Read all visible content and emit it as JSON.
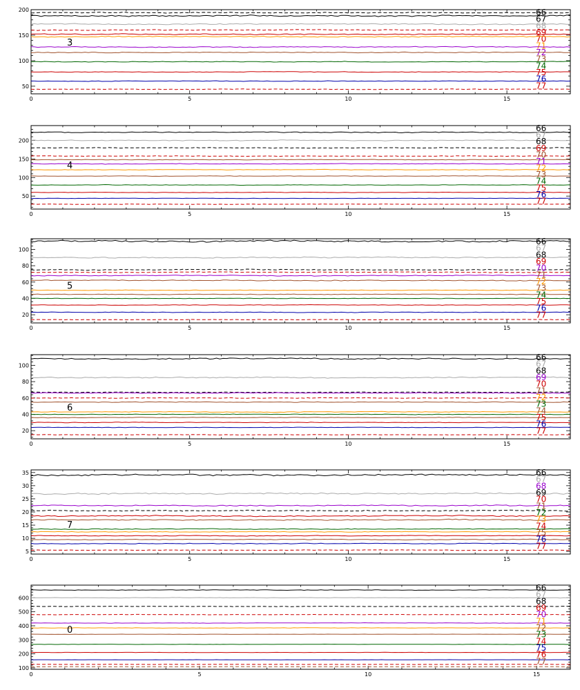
{
  "chart_data": [
    {
      "type": "line",
      "panel_label": "3",
      "xlim": [
        0,
        17
      ],
      "ylim": [
        35,
        200
      ],
      "xticks": [
        0,
        5,
        10,
        15
      ],
      "yticks": [
        50,
        100,
        150,
        200
      ],
      "series": [
        {
          "name": "66",
          "color": "#000000",
          "dash": false,
          "level": 188,
          "noise": 2.0
        },
        {
          "name": "67",
          "color": "#000000",
          "dash": true,
          "level": 194,
          "noise": 1.2
        },
        {
          "name": "68",
          "color": "#aaaaaa",
          "dash": false,
          "level": 172,
          "noise": 1.5
        },
        {
          "name": "69",
          "color": "#cc0000",
          "dash": true,
          "level": 160,
          "noise": 1.2
        },
        {
          "name": "70",
          "color": "#cc0000",
          "dash": false,
          "level": 152,
          "noise": 1.5
        },
        {
          "name": "71",
          "color": "#ff9900",
          "dash": false,
          "level": 147,
          "noise": 1.5
        },
        {
          "name": "72",
          "color": "#9900cc",
          "dash": false,
          "level": 127,
          "noise": 1.2
        },
        {
          "name": "73",
          "color": "#a0522d",
          "dash": false,
          "level": 116,
          "noise": 1.2
        },
        {
          "name": "74",
          "color": "#006600",
          "dash": false,
          "level": 98,
          "noise": 1.0
        },
        {
          "name": "75",
          "color": "#cc0000",
          "dash": false,
          "level": 78,
          "noise": 1.0
        },
        {
          "name": "76",
          "color": "#0000aa",
          "dash": false,
          "level": 60,
          "noise": 1.0
        },
        {
          "name": "77",
          "color": "#cc0000",
          "dash": true,
          "level": 44,
          "noise": 0.8
        }
      ]
    },
    {
      "type": "line",
      "panel_label": "4",
      "xlim": [
        0,
        17
      ],
      "ylim": [
        15,
        240
      ],
      "xticks": [
        0,
        5,
        10,
        15
      ],
      "yticks": [
        50,
        100,
        150,
        200
      ],
      "series": [
        {
          "name": "66",
          "color": "#000000",
          "dash": false,
          "level": 222,
          "noise": 2.0
        },
        {
          "name": "67",
          "color": "#aaaaaa",
          "dash": false,
          "level": 200,
          "noise": 1.5
        },
        {
          "name": "68",
          "color": "#000000",
          "dash": true,
          "level": 180,
          "noise": 1.2
        },
        {
          "name": "69",
          "color": "#cc0000",
          "dash": true,
          "level": 158,
          "noise": 1.2
        },
        {
          "name": "70",
          "color": "#a0522d",
          "dash": false,
          "level": 148,
          "noise": 1.2
        },
        {
          "name": "71",
          "color": "#9900cc",
          "dash": false,
          "level": 137,
          "noise": 1.5
        },
        {
          "name": "72",
          "color": "#ff9900",
          "dash": false,
          "level": 121,
          "noise": 1.2
        },
        {
          "name": "73",
          "color": "#a0522d",
          "dash": false,
          "level": 104,
          "noise": 1.0
        },
        {
          "name": "74",
          "color": "#006600",
          "dash": false,
          "level": 80,
          "noise": 1.0
        },
        {
          "name": "75",
          "color": "#cc0000",
          "dash": false,
          "level": 60,
          "noise": 1.0
        },
        {
          "name": "76",
          "color": "#0000aa",
          "dash": false,
          "level": 44,
          "noise": 0.8
        },
        {
          "name": "77",
          "color": "#cc0000",
          "dash": true,
          "level": 28,
          "noise": 0.8
        }
      ]
    },
    {
      "type": "line",
      "panel_label": "5",
      "xlim": [
        0,
        17
      ],
      "ylim": [
        10,
        113
      ],
      "xticks": [
        0,
        5,
        10,
        15
      ],
      "yticks": [
        20,
        40,
        60,
        80,
        100
      ],
      "series": [
        {
          "name": "66",
          "color": "#000000",
          "dash": false,
          "level": 110,
          "noise": 1.5
        },
        {
          "name": "67",
          "color": "#aaaaaa",
          "dash": false,
          "level": 90,
          "noise": 1.0
        },
        {
          "name": "68",
          "color": "#000000",
          "dash": true,
          "level": 75,
          "noise": 0.8
        },
        {
          "name": "69",
          "color": "#cc0000",
          "dash": true,
          "level": 72,
          "noise": 0.6
        },
        {
          "name": "70",
          "color": "#9900cc",
          "dash": false,
          "level": 68,
          "noise": 0.8
        },
        {
          "name": "71",
          "color": "#a0522d",
          "dash": false,
          "level": 62,
          "noise": 0.8
        },
        {
          "name": "72",
          "color": "#ff9900",
          "dash": false,
          "level": 50,
          "noise": 0.6
        },
        {
          "name": "73",
          "color": "#a0522d",
          "dash": false,
          "level": 45,
          "noise": 0.6
        },
        {
          "name": "74",
          "color": "#006600",
          "dash": false,
          "level": 40,
          "noise": 0.5
        },
        {
          "name": "75",
          "color": "#cc0000",
          "dash": false,
          "level": 32,
          "noise": 0.5
        },
        {
          "name": "76",
          "color": "#0000aa",
          "dash": false,
          "level": 23,
          "noise": 0.5
        },
        {
          "name": "77",
          "color": "#cc0000",
          "dash": true,
          "level": 14,
          "noise": 0.4
        }
      ]
    },
    {
      "type": "line",
      "panel_label": "6",
      "xlim": [
        0,
        17
      ],
      "ylim": [
        10,
        113
      ],
      "xticks": [
        0,
        5,
        10,
        15
      ],
      "yticks": [
        20,
        40,
        60,
        80,
        100
      ],
      "series": [
        {
          "name": "66",
          "color": "#000000",
          "dash": false,
          "level": 108,
          "noise": 1.2
        },
        {
          "name": "67",
          "color": "#aaaaaa",
          "dash": false,
          "level": 85,
          "noise": 1.0
        },
        {
          "name": "68",
          "color": "#000000",
          "dash": true,
          "level": 67,
          "noise": 0.6
        },
        {
          "name": "69",
          "color": "#9900cc",
          "dash": false,
          "level": 66,
          "noise": 0.8
        },
        {
          "name": "70",
          "color": "#cc0000",
          "dash": true,
          "level": 60,
          "noise": 0.6
        },
        {
          "name": "71",
          "color": "#a0522d",
          "dash": false,
          "level": 55,
          "noise": 0.6
        },
        {
          "name": "72",
          "color": "#ff9900",
          "dash": false,
          "level": 43,
          "noise": 0.6
        },
        {
          "name": "73",
          "color": "#006600",
          "dash": false,
          "level": 40,
          "noise": 0.5
        },
        {
          "name": "74",
          "color": "#a0522d",
          "dash": false,
          "level": 36,
          "noise": 0.5
        },
        {
          "name": "75",
          "color": "#cc0000",
          "dash": false,
          "level": 30,
          "noise": 0.5
        },
        {
          "name": "76",
          "color": "#0000aa",
          "dash": false,
          "level": 24,
          "noise": 0.4
        },
        {
          "name": "77",
          "color": "#cc0000",
          "dash": true,
          "level": 15,
          "noise": 0.4
        }
      ]
    },
    {
      "type": "line",
      "panel_label": "7",
      "xlim": [
        0,
        17
      ],
      "ylim": [
        4,
        36
      ],
      "xticks": [
        0,
        5,
        10,
        15
      ],
      "yticks": [
        5,
        10,
        15,
        20,
        25,
        30,
        35
      ],
      "series": [
        {
          "name": "66",
          "color": "#000000",
          "dash": false,
          "level": 34,
          "noise": 0.5
        },
        {
          "name": "67",
          "color": "#aaaaaa",
          "dash": false,
          "level": 27,
          "noise": 0.4
        },
        {
          "name": "68",
          "color": "#9900cc",
          "dash": false,
          "level": 22.5,
          "noise": 0.3
        },
        {
          "name": "69",
          "color": "#000000",
          "dash": true,
          "level": 20.5,
          "noise": 0.3
        },
        {
          "name": "70",
          "color": "#cc0000",
          "dash": false,
          "level": 18.5,
          "noise": 0.3
        },
        {
          "name": "71",
          "color": "#a0522d",
          "dash": false,
          "level": 17,
          "noise": 0.3
        },
        {
          "name": "72",
          "color": "#006600",
          "dash": false,
          "level": 13.5,
          "noise": 0.2
        },
        {
          "name": "73",
          "color": "#ff9900",
          "dash": false,
          "level": 12.5,
          "noise": 0.2
        },
        {
          "name": "74",
          "color": "#cc0000",
          "dash": false,
          "level": 11,
          "noise": 0.2
        },
        {
          "name": "75",
          "color": "#a0522d",
          "dash": false,
          "level": 9.5,
          "noise": 0.2
        },
        {
          "name": "76",
          "color": "#0000aa",
          "dash": false,
          "level": 8,
          "noise": 0.2
        },
        {
          "name": "77",
          "color": "#cc0000",
          "dash": true,
          "level": 5.5,
          "noise": 0.15
        }
      ]
    },
    {
      "type": "line",
      "panel_label": "0",
      "xlim": [
        0,
        16
      ],
      "ylim": [
        90,
        690
      ],
      "xticks": [
        0,
        5,
        10,
        15
      ],
      "yticks": [
        100,
        200,
        300,
        400,
        500,
        600
      ],
      "series": [
        {
          "name": "66",
          "color": "#000000",
          "dash": false,
          "level": 655,
          "noise": 3.0
        },
        {
          "name": "67",
          "color": "#aaaaaa",
          "dash": false,
          "level": 600,
          "noise": 2.5
        },
        {
          "name": "68",
          "color": "#000000",
          "dash": true,
          "level": 538,
          "noise": 2.0
        },
        {
          "name": "69",
          "color": "#cc0000",
          "dash": true,
          "level": 480,
          "noise": 2.0
        },
        {
          "name": "70",
          "color": "#9900cc",
          "dash": false,
          "level": 420,
          "noise": 2.0
        },
        {
          "name": "71",
          "color": "#ff9900",
          "dash": false,
          "level": 385,
          "noise": 2.0
        },
        {
          "name": "72",
          "color": "#a0522d",
          "dash": false,
          "level": 340,
          "noise": 1.5
        },
        {
          "name": "73",
          "color": "#006600",
          "dash": false,
          "level": 268,
          "noise": 1.5
        },
        {
          "name": "74",
          "color": "#cc0000",
          "dash": false,
          "level": 210,
          "noise": 1.5
        },
        {
          "name": "75",
          "color": "#0000aa",
          "dash": false,
          "level": 158,
          "noise": 1.2
        },
        {
          "name": "76",
          "color": "#cc0000",
          "dash": true,
          "level": 125,
          "noise": 1.0
        },
        {
          "name": "77",
          "color": "#a0522d",
          "dash": true,
          "level": 108,
          "noise": 1.0
        }
      ]
    }
  ]
}
